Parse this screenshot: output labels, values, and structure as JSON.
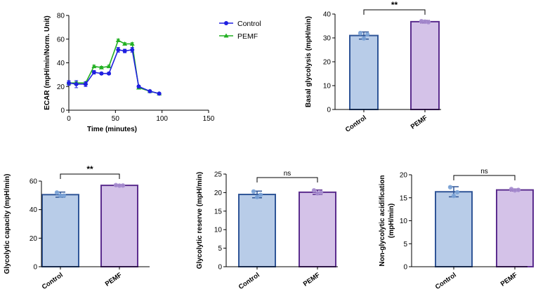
{
  "colors": {
    "control": "#1f1fe0",
    "pemf": "#22b022",
    "control_bar_fill": "#b8cce8",
    "control_bar_edge": "#2f5597",
    "pemf_bar_fill": "#d4c2e8",
    "pemf_bar_edge": "#5b2d8e",
    "control_point": "#7ba3d6",
    "pemf_point": "#a98fd0",
    "axis": "#000000"
  },
  "chart_data": [
    {
      "id": "ecar",
      "type": "line",
      "xlabel": "Time (minutes)",
      "ylabel": "ECAR (mpH/min/Norm. Unit)",
      "xlim": [
        0,
        150
      ],
      "ylim": [
        0,
        80
      ],
      "xticks": [
        0,
        50,
        100,
        150
      ],
      "yticks": [
        0,
        20,
        40,
        60,
        80
      ],
      "legend": [
        "Control",
        "PEMF"
      ],
      "series": [
        {
          "name": "Control",
          "x": [
            0,
            8,
            18,
            27,
            35,
            43,
            53,
            60,
            68,
            75,
            87,
            97
          ],
          "y": [
            23,
            22,
            22,
            32,
            31,
            31,
            51,
            50,
            51,
            20,
            16,
            14
          ],
          "err": [
            2,
            3,
            2,
            1.5,
            1,
            1,
            2,
            1.5,
            2,
            1,
            0.8,
            0.6
          ]
        },
        {
          "name": "PEMF",
          "x": [
            0,
            8,
            18,
            27,
            35,
            43,
            53,
            60,
            68,
            75,
            87,
            97
          ],
          "y": [
            23,
            23,
            23,
            37,
            36,
            37,
            59,
            56,
            56,
            19,
            16,
            14
          ],
          "err": [
            1,
            1,
            1,
            1,
            1,
            1,
            1,
            1,
            1,
            1,
            0.6,
            0.5
          ]
        }
      ]
    },
    {
      "id": "basal",
      "type": "bar",
      "ylabel": "Basal glycolysis (mpH/min)",
      "categories": [
        "Control",
        "PEMF"
      ],
      "values": [
        31,
        36.8
      ],
      "errors": [
        1.5,
        0.5
      ],
      "points": [
        [
          32,
          29.8,
          31.5
        ],
        [
          37,
          36.8,
          36.6
        ]
      ],
      "ylim": [
        0,
        40
      ],
      "yticks": [
        0,
        10,
        20,
        30,
        40
      ],
      "significance": "**"
    },
    {
      "id": "capacity",
      "type": "bar",
      "ylabel": "Glycolytic capacity (mpH/min)",
      "categories": [
        "Control",
        "PEMF"
      ],
      "values": [
        50.5,
        57
      ],
      "errors": [
        1.8,
        0.5
      ],
      "points": [
        [
          52,
          49.8,
          49.8
        ],
        [
          57.2,
          56.8,
          56.9
        ]
      ],
      "ylim": [
        0,
        60
      ],
      "yticks": [
        0,
        20,
        40,
        60
      ],
      "significance": "**"
    },
    {
      "id": "reserve",
      "type": "bar",
      "ylabel": "Glycolytic reserve (mpH/min)",
      "categories": [
        "Control",
        "PEMF"
      ],
      "values": [
        19.5,
        20.1
      ],
      "errors": [
        0.9,
        0.6
      ],
      "points": [
        [
          20.3,
          18.8,
          19.4
        ],
        [
          20.6,
          19.8,
          20
        ]
      ],
      "ylim": [
        0,
        25
      ],
      "yticks": [
        0,
        5,
        10,
        15,
        20,
        25
      ],
      "significance": "ns"
    },
    {
      "id": "nonglyco",
      "type": "bar",
      "ylabel": "Non-glycolytic acidification",
      "ylabel2": "(mpH/min)",
      "categories": [
        "Control",
        "PEMF"
      ],
      "values": [
        16.3,
        16.7
      ],
      "errors": [
        1.1,
        0.2
      ],
      "points": [
        [
          17.3,
          15.4,
          16.2
        ],
        [
          16.9,
          16.6,
          16.7
        ]
      ],
      "ylim": [
        0,
        20
      ],
      "yticks": [
        0,
        5,
        10,
        15,
        20
      ],
      "significance": "ns"
    }
  ]
}
